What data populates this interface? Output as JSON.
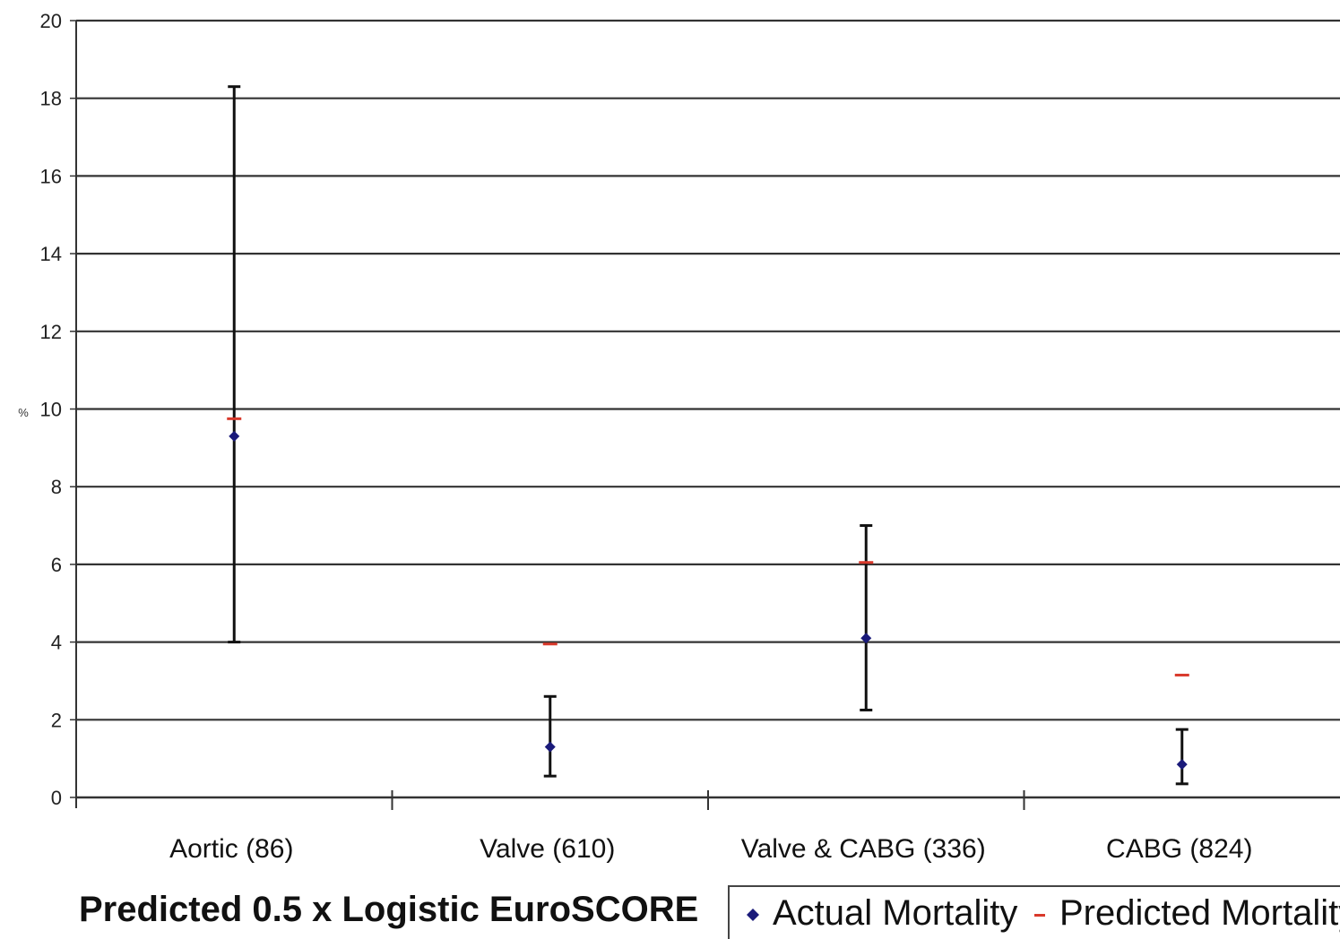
{
  "chart_data": {
    "type": "scatter",
    "title": "Predicted 0.5 x Logistic EuroSCORE",
    "ylabel": "%",
    "xlabel": "",
    "ylim": [
      0,
      20
    ],
    "yticks": [
      "0",
      "2",
      "4",
      "6",
      "8",
      "10",
      "12",
      "14",
      "16",
      "18",
      "20"
    ],
    "grid": true,
    "legend_position": "bottom-right",
    "categories": [
      "Aortic (86)",
      "Valve (610)",
      "Valve & CABG (336)",
      "CABG (824)"
    ],
    "series": [
      {
        "name": "Actual Mortality",
        "marker": "diamond",
        "color": "#1a1a7a",
        "values": [
          9.3,
          1.3,
          4.1,
          0.85
        ],
        "error_low": [
          4.0,
          0.55,
          2.25,
          0.35
        ],
        "error_high": [
          18.3,
          2.6,
          7.0,
          1.75
        ]
      },
      {
        "name": "Predicted Mortality",
        "marker": "dash",
        "color": "#d9392b",
        "values": [
          9.75,
          3.95,
          6.05,
          3.15
        ]
      }
    ]
  },
  "colors": {
    "gridline": "#333333",
    "errorbar": "#111111"
  }
}
